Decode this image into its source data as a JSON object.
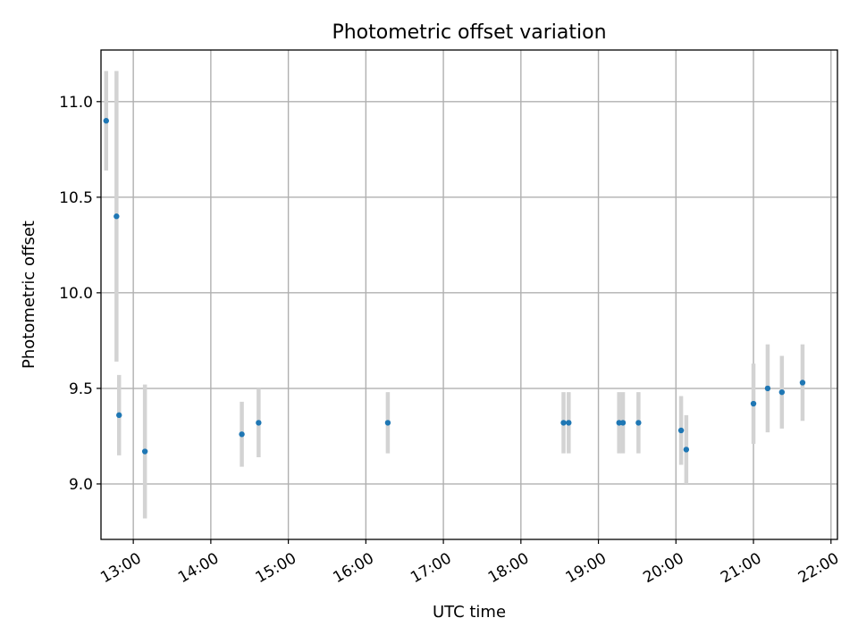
{
  "chart_data": {
    "type": "scatter",
    "title": "Photometric offset variation",
    "xlabel": "UTC time",
    "ylabel": "Photometric offset",
    "xlim": [
      "12:35",
      "22:05"
    ],
    "ylim": [
      8.71,
      11.27
    ],
    "grid": true,
    "x_ticks": [
      "13:00",
      "14:00",
      "15:00",
      "16:00",
      "17:00",
      "18:00",
      "19:00",
      "20:00",
      "21:00",
      "22:00"
    ],
    "y_ticks": [
      "9.0",
      "9.5",
      "10.0",
      "10.5",
      "11.0"
    ],
    "colors": {
      "point": "#1f77b4",
      "errorbar": "#d3d3d3",
      "grid": "#b0b0b0"
    },
    "series": [
      {
        "points": [
          {
            "x": "12:39",
            "y": 10.9,
            "err": 0.26
          },
          {
            "x": "12:47",
            "y": 10.4,
            "err": 0.76
          },
          {
            "x": "12:49",
            "y": 9.36,
            "err": 0.21
          },
          {
            "x": "13:09",
            "y": 9.17,
            "err": 0.35
          },
          {
            "x": "14:24",
            "y": 9.26,
            "err": 0.17
          },
          {
            "x": "14:37",
            "y": 9.32,
            "err": 0.18
          },
          {
            "x": "16:17",
            "y": 9.32,
            "err": 0.16
          },
          {
            "x": "18:33",
            "y": 9.32,
            "err": 0.16
          },
          {
            "x": "18:37",
            "y": 9.32,
            "err": 0.16
          },
          {
            "x": "19:16",
            "y": 9.32,
            "err": 0.16
          },
          {
            "x": "19:19",
            "y": 9.32,
            "err": 0.16
          },
          {
            "x": "19:31",
            "y": 9.32,
            "err": 0.16
          },
          {
            "x": "20:04",
            "y": 9.28,
            "err": 0.18
          },
          {
            "x": "20:08",
            "y": 9.18,
            "err": 0.18
          },
          {
            "x": "21:00",
            "y": 9.42,
            "err": 0.21
          },
          {
            "x": "21:11",
            "y": 9.5,
            "err": 0.23
          },
          {
            "x": "21:22",
            "y": 9.48,
            "err": 0.19
          },
          {
            "x": "21:38",
            "y": 9.53,
            "err": 0.2
          }
        ]
      }
    ]
  }
}
